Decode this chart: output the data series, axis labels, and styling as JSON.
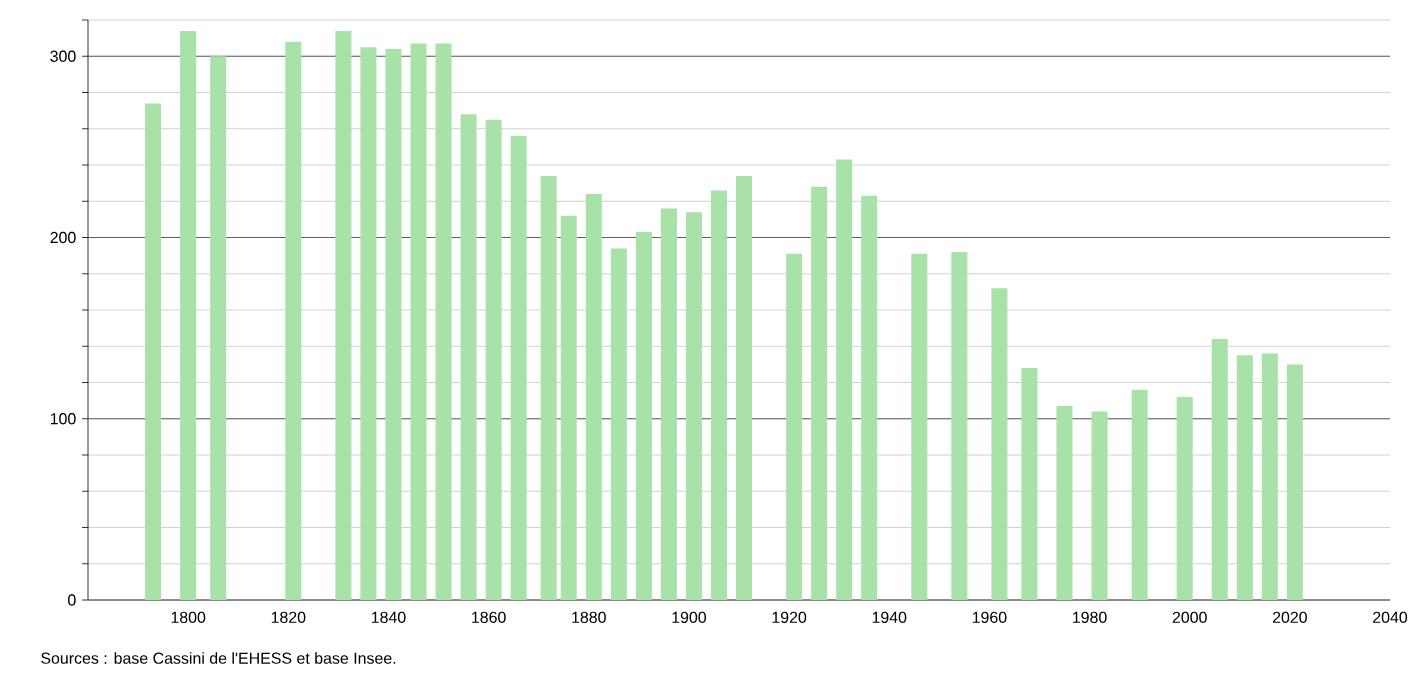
{
  "chart_data": {
    "type": "bar",
    "color": "#a8e2a8",
    "x": [
      1793,
      1800,
      1806,
      1821,
      1831,
      1836,
      1841,
      1846,
      1851,
      1856,
      1861,
      1866,
      1872,
      1876,
      1881,
      1886,
      1891,
      1896,
      1901,
      1906,
      1911,
      1921,
      1926,
      1931,
      1936,
      1946,
      1954,
      1962,
      1968,
      1975,
      1982,
      1990,
      1999,
      2006,
      2011,
      2016,
      2021
    ],
    "values": [
      274,
      314,
      300,
      308,
      314,
      305,
      304,
      307,
      307,
      268,
      265,
      256,
      234,
      212,
      224,
      194,
      203,
      216,
      214,
      226,
      234,
      191,
      228,
      243,
      223,
      191,
      192,
      172,
      128,
      107,
      104,
      116,
      112,
      144,
      135,
      136,
      130
    ],
    "xlim": [
      1780,
      2040
    ],
    "xticks": [
      1800,
      1820,
      1840,
      1860,
      1880,
      1900,
      1920,
      1940,
      1960,
      1980,
      2000,
      2020,
      2040
    ],
    "ylim": [
      0,
      320
    ],
    "yticks": [
      0,
      {
        "value": 20,
        "label": null
      },
      {
        "value": 40,
        "label": null
      },
      {
        "value": 60,
        "label": null
      },
      {
        "value": 80,
        "label": null
      },
      100,
      {
        "value": 120,
        "label": null
      },
      {
        "value": 140,
        "label": null
      },
      {
        "value": 160,
        "label": null
      },
      {
        "value": 180,
        "label": null
      },
      200,
      {
        "value": 220,
        "label": null
      },
      {
        "value": 240,
        "label": null
      },
      {
        "value": 260,
        "label": null
      },
      {
        "value": 280,
        "label": null
      },
      300,
      {
        "value": 320,
        "label": null
      }
    ],
    "grid": "y",
    "annotations": [
      "Sources : base Cassini de l'EHESS et base Insee."
    ]
  }
}
